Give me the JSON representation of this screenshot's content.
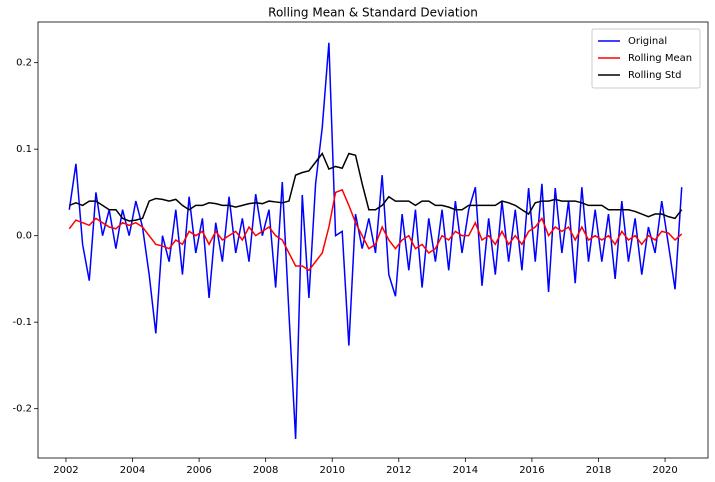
{
  "chart_data": {
    "type": "line",
    "title": "Rolling Mean & Standard Deviation",
    "x": [
      2002.1,
      2002.3,
      2002.5,
      2002.7,
      2002.9,
      2003.1,
      2003.3,
      2003.5,
      2003.7,
      2003.9,
      2004.1,
      2004.3,
      2004.5,
      2004.7,
      2004.9,
      2005.1,
      2005.3,
      2005.5,
      2005.7,
      2005.9,
      2006.1,
      2006.3,
      2006.5,
      2006.7,
      2006.9,
      2007.1,
      2007.3,
      2007.5,
      2007.7,
      2007.9,
      2008.1,
      2008.3,
      2008.5,
      2008.7,
      2008.9,
      2009.1,
      2009.3,
      2009.5,
      2009.7,
      2009.9,
      2010.1,
      2010.3,
      2010.5,
      2010.7,
      2010.9,
      2011.1,
      2011.3,
      2011.5,
      2011.7,
      2011.9,
      2012.1,
      2012.3,
      2012.5,
      2012.7,
      2012.9,
      2013.1,
      2013.3,
      2013.5,
      2013.7,
      2013.9,
      2014.1,
      2014.3,
      2014.5,
      2014.7,
      2014.9,
      2015.1,
      2015.3,
      2015.5,
      2015.7,
      2015.9,
      2016.1,
      2016.3,
      2016.5,
      2016.7,
      2016.9,
      2017.1,
      2017.3,
      2017.5,
      2017.7,
      2017.9,
      2018.1,
      2018.3,
      2018.5,
      2018.7,
      2018.9,
      2019.1,
      2019.3,
      2019.5,
      2019.7,
      2019.9,
      2020.1,
      2020.3,
      2020.5
    ],
    "series": [
      {
        "name": "Original",
        "color": "#0000ff",
        "values": [
          0.03,
          0.083,
          -0.01,
          -0.052,
          0.05,
          0.0,
          0.03,
          -0.015,
          0.03,
          0.0,
          0.04,
          0.01,
          -0.045,
          -0.113,
          0.0,
          -0.03,
          0.03,
          -0.045,
          0.045,
          -0.02,
          0.02,
          -0.072,
          0.015,
          -0.03,
          0.045,
          -0.02,
          0.02,
          -0.03,
          0.048,
          0.0,
          0.03,
          -0.06,
          0.062,
          -0.09,
          -0.235,
          0.047,
          -0.072,
          0.06,
          0.125,
          0.223,
          0.0,
          0.005,
          -0.127,
          0.025,
          -0.015,
          0.02,
          -0.02,
          0.07,
          -0.045,
          -0.07,
          0.025,
          -0.04,
          0.03,
          -0.06,
          0.02,
          -0.03,
          0.03,
          -0.04,
          0.04,
          -0.02,
          0.03,
          0.056,
          -0.058,
          0.02,
          -0.045,
          0.04,
          -0.03,
          0.03,
          -0.04,
          0.055,
          -0.03,
          0.06,
          -0.065,
          0.055,
          -0.02,
          0.04,
          -0.055,
          0.056,
          -0.03,
          0.03,
          -0.03,
          0.025,
          -0.05,
          0.04,
          -0.03,
          0.02,
          -0.045,
          0.01,
          -0.02,
          0.04,
          -0.01,
          -0.062,
          0.056
        ]
      },
      {
        "name": "Rolling Mean",
        "color": "#ff0000",
        "values": [
          0.008,
          0.018,
          0.015,
          0.012,
          0.02,
          0.015,
          0.01,
          0.008,
          0.015,
          0.012,
          0.015,
          0.01,
          0.0,
          -0.01,
          -0.012,
          -0.015,
          -0.005,
          -0.01,
          0.005,
          0.0,
          0.005,
          -0.01,
          0.005,
          -0.005,
          0.0,
          0.005,
          -0.005,
          0.01,
          0.0,
          0.005,
          0.01,
          0.0,
          -0.005,
          -0.02,
          -0.035,
          -0.035,
          -0.04,
          -0.03,
          -0.02,
          0.01,
          0.05,
          0.053,
          0.035,
          0.015,
          0.0,
          -0.015,
          -0.01,
          0.01,
          -0.005,
          -0.015,
          -0.005,
          0.0,
          -0.015,
          -0.01,
          -0.02,
          -0.015,
          0.0,
          -0.005,
          0.005,
          0.0,
          0.0,
          0.015,
          -0.005,
          0.0,
          -0.01,
          0.005,
          -0.01,
          0.0,
          -0.01,
          0.005,
          0.01,
          0.02,
          0.0,
          0.01,
          0.005,
          0.01,
          -0.005,
          0.01,
          -0.005,
          0.0,
          -0.005,
          0.0,
          -0.01,
          0.005,
          -0.005,
          0.0,
          -0.01,
          0.0,
          -0.005,
          0.005,
          0.003,
          -0.005,
          0.002
        ]
      },
      {
        "name": "Rolling Std",
        "color": "#000000",
        "values": [
          0.035,
          0.038,
          0.035,
          0.04,
          0.04,
          0.035,
          0.03,
          0.03,
          0.02,
          0.017,
          0.018,
          0.02,
          0.04,
          0.043,
          0.042,
          0.04,
          0.042,
          0.035,
          0.03,
          0.035,
          0.035,
          0.038,
          0.037,
          0.035,
          0.035,
          0.033,
          0.035,
          0.037,
          0.038,
          0.037,
          0.04,
          0.039,
          0.038,
          0.04,
          0.07,
          0.073,
          0.075,
          0.085,
          0.095,
          0.077,
          0.08,
          0.078,
          0.095,
          0.093,
          0.06,
          0.03,
          0.03,
          0.035,
          0.045,
          0.04,
          0.04,
          0.04,
          0.035,
          0.04,
          0.04,
          0.035,
          0.035,
          0.033,
          0.03,
          0.03,
          0.035,
          0.035,
          0.035,
          0.035,
          0.035,
          0.04,
          0.038,
          0.035,
          0.03,
          0.025,
          0.038,
          0.04,
          0.04,
          0.042,
          0.04,
          0.04,
          0.04,
          0.038,
          0.035,
          0.035,
          0.035,
          0.03,
          0.03,
          0.03,
          0.03,
          0.028,
          0.025,
          0.022,
          0.025,
          0.025,
          0.022,
          0.02,
          0.03
        ]
      }
    ],
    "xlim": [
      2001.16,
      2021.29
    ],
    "xticks": [
      2002,
      2004,
      2006,
      2008,
      2010,
      2012,
      2014,
      2016,
      2018,
      2020
    ],
    "ylim": [
      -0.257,
      0.247
    ],
    "yticks": [
      -0.2,
      -0.1,
      {
        "value": 0,
        "label": "0.0"
      },
      0.1,
      0.2
    ],
    "legend": "upper right"
  }
}
